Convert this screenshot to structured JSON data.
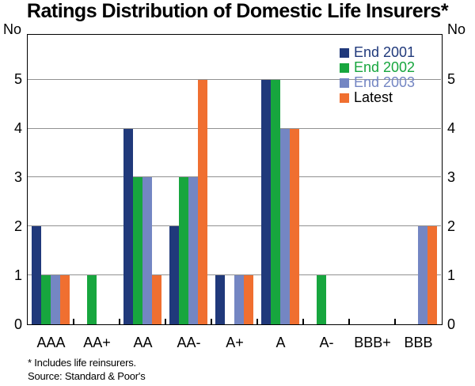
{
  "page": {
    "title": "Ratings Distribution of Domestic Life Insurers*",
    "unit_left": "No",
    "unit_right": "No",
    "footnote": "* Includes life reinsurers.",
    "source": "Source: Standard & Poor's"
  },
  "chart_data": {
    "type": "bar",
    "title": "Ratings Distribution of Domestic Life Insurers*",
    "unit": "No",
    "categories": [
      "AAA",
      "AA+",
      "AA",
      "AA-",
      "A+",
      "A",
      "A-",
      "BBB+",
      "BBB"
    ],
    "series": [
      {
        "name": "End 2001",
        "color": "#20397b",
        "label_color": "#20397b",
        "values": [
          2,
          0,
          4,
          2,
          1,
          5,
          0,
          0,
          0
        ]
      },
      {
        "name": "End 2002",
        "color": "#17a63e",
        "label_color": "#17a63e",
        "values": [
          1,
          1,
          3,
          3,
          0,
          5,
          1,
          0,
          0
        ]
      },
      {
        "name": "End 2003",
        "color": "#7486c3",
        "label_color": "#7486c3",
        "values": [
          1,
          0,
          3,
          3,
          1,
          4,
          0,
          0,
          2
        ]
      },
      {
        "name": "Latest",
        "color": "#f06f30",
        "label_color": "#000000",
        "values": [
          1,
          0,
          1,
          5,
          1,
          4,
          0,
          0,
          2
        ]
      }
    ],
    "ylim": [
      0,
      5.9
    ],
    "yticks": [
      0,
      1,
      2,
      3,
      4,
      5
    ],
    "grid": true,
    "gridline_color": "#919191",
    "legend_position": "top-right",
    "footnotes": [
      "* Includes life reinsurers.",
      "Source: Standard & Poor's"
    ]
  }
}
